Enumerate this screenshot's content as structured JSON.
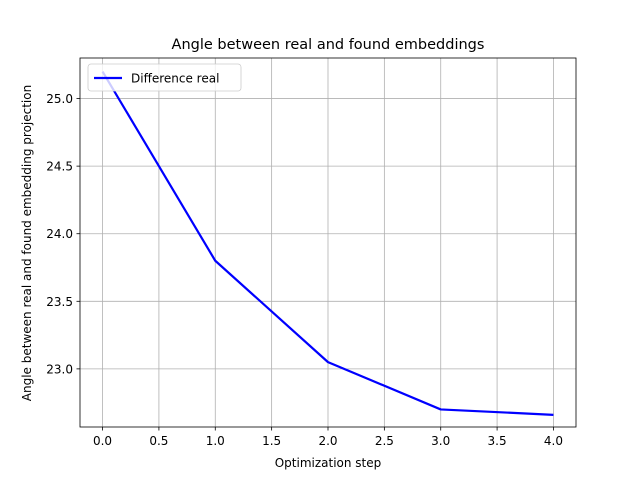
{
  "chart_data": {
    "type": "line",
    "title": "Angle between real and found embeddings",
    "xlabel": "Optimization step",
    "ylabel": "Angle between real and found embedding projection",
    "xlim": [
      -0.2,
      4.2
    ],
    "ylim": [
      22.57,
      25.3
    ],
    "xticks": [
      "0.0",
      "0.5",
      "1.0",
      "1.5",
      "2.0",
      "2.5",
      "3.0",
      "3.5",
      "4.0"
    ],
    "yticks": [
      "23.0",
      "23.5",
      "24.0",
      "24.5",
      "25.0"
    ],
    "grid": true,
    "legend_position": "upper-left",
    "series": [
      {
        "name": "Difference real",
        "color": "#0000ff",
        "x": [
          0,
          1,
          2,
          3,
          4
        ],
        "y": [
          25.2,
          23.8,
          23.05,
          22.7,
          22.66
        ]
      }
    ]
  }
}
